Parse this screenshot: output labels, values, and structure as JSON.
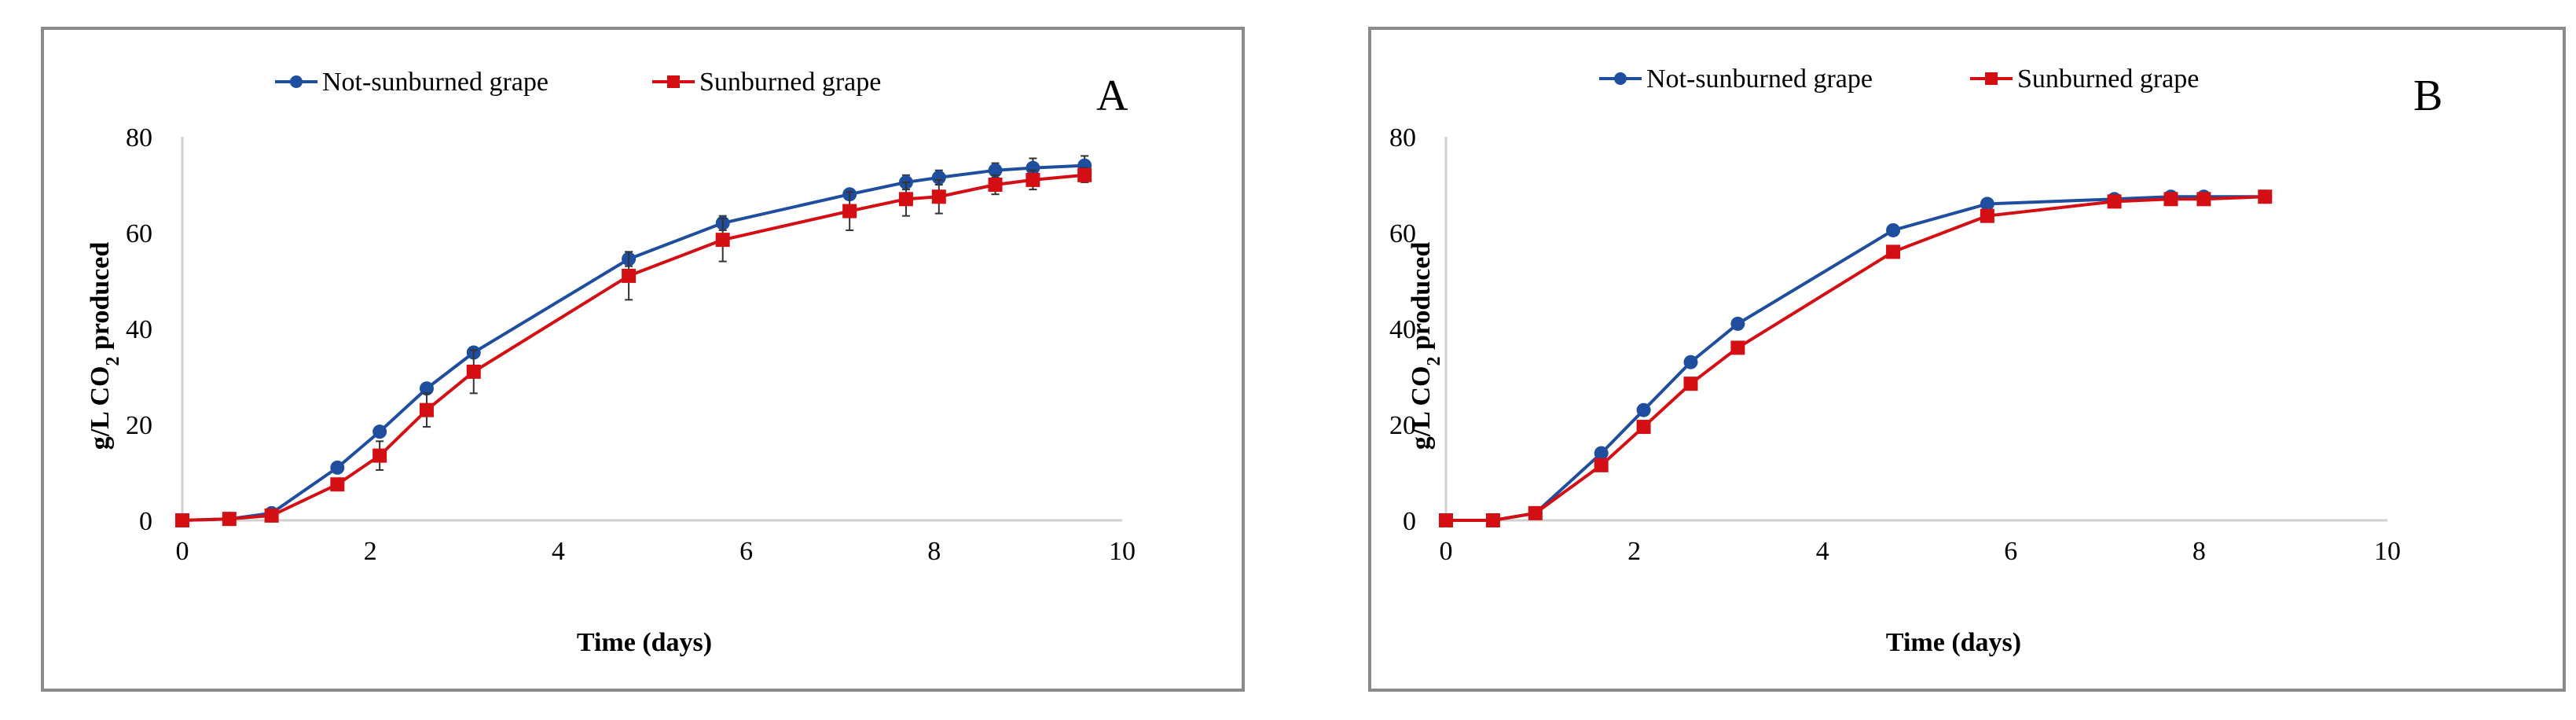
{
  "colors": {
    "series1": "#1f4e9e",
    "series2": "#d40f14"
  },
  "chart_data": [
    {
      "type": "line",
      "panel_label": "A",
      "xlabel": "Time (days)",
      "ylabel_main": "g/L CO",
      "ylabel_sub": "2",
      "ylabel_tail": " produced",
      "xlim": [
        0,
        10
      ],
      "ylim": [
        0,
        80
      ],
      "xticks": [
        0,
        2,
        4,
        6,
        8,
        10
      ],
      "yticks": [
        0,
        20,
        40,
        60,
        80
      ],
      "legend_position": "top-center",
      "series": [
        {
          "name": "Not-sunburned grape",
          "marker": "circle",
          "x": [
            0,
            0.5,
            0.95,
            1.65,
            2.1,
            2.6,
            3.1,
            4.75,
            5.75,
            7.1,
            7.7,
            8.05,
            8.65,
            9.05,
            9.6
          ],
          "y": [
            0,
            0.3,
            1.5,
            11,
            18.5,
            27.5,
            35,
            54.5,
            62,
            68,
            70.5,
            71.5,
            73,
            73.5,
            74
          ],
          "err": [
            0,
            0,
            0,
            0,
            1,
            1,
            1,
            1.5,
            1.5,
            1,
            1.5,
            1.5,
            1.5,
            2,
            2
          ]
        },
        {
          "name": "Sunburned grape",
          "marker": "square",
          "x": [
            0,
            0.5,
            0.95,
            1.65,
            2.1,
            2.6,
            3.1,
            4.75,
            5.75,
            7.1,
            7.7,
            8.05,
            8.65,
            9.05,
            9.6
          ],
          "y": [
            0,
            0.3,
            1,
            7.5,
            13.5,
            23,
            31,
            51,
            58.5,
            64.5,
            67,
            67.5,
            70,
            71,
            72
          ],
          "err": [
            0,
            0,
            0,
            1,
            3,
            3.5,
            4.5,
            5,
            4.5,
            4,
            3.5,
            3.5,
            2,
            2,
            1.5
          ]
        }
      ]
    },
    {
      "type": "line",
      "panel_label": "B",
      "xlabel": "Time (days)",
      "ylabel_main": "g/L CO",
      "ylabel_sub": "2",
      "ylabel_tail": " produced",
      "xlim": [
        0,
        10
      ],
      "ylim": [
        0,
        80
      ],
      "xticks": [
        0,
        2,
        4,
        6,
        8,
        10
      ],
      "yticks": [
        0,
        20,
        40,
        60,
        80
      ],
      "legend_position": "top-center",
      "series": [
        {
          "name": "Not-sunburned grape",
          "marker": "circle",
          "x": [
            0,
            0.5,
            0.95,
            1.65,
            2.1,
            2.6,
            3.1,
            4.75,
            5.75,
            7.1,
            7.7,
            8.05,
            8.7
          ],
          "y": [
            0,
            0,
            1.5,
            14,
            23,
            33,
            41,
            60.5,
            66,
            67,
            67.5,
            67.5,
            67.5
          ],
          "err": []
        },
        {
          "name": "Sunburned grape",
          "marker": "square",
          "x": [
            0,
            0.5,
            0.95,
            1.65,
            2.1,
            2.6,
            3.1,
            4.75,
            5.75,
            7.1,
            7.7,
            8.05,
            8.7
          ],
          "y": [
            0,
            0,
            1.5,
            11.5,
            19.5,
            28.5,
            36,
            56,
            63.5,
            66.5,
            67,
            67,
            67.5
          ],
          "err": []
        }
      ]
    }
  ]
}
